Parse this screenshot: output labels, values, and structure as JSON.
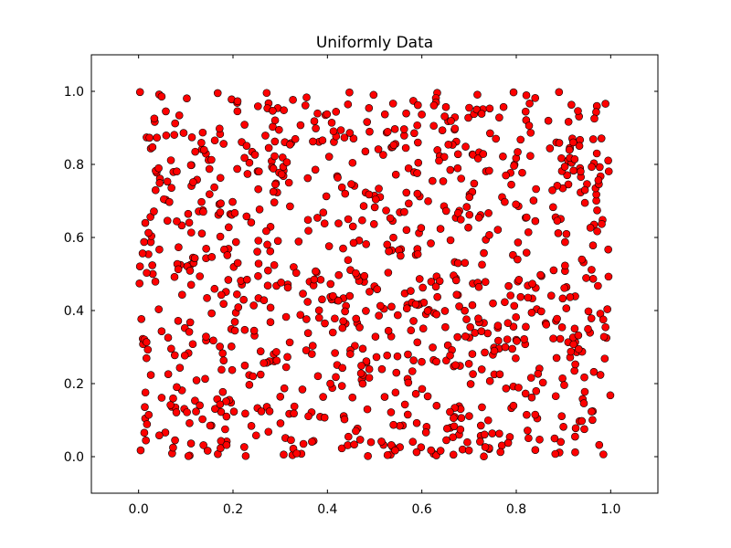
{
  "chart_data": {
    "type": "scatter",
    "title": "Uniformly Data",
    "xlabel": "",
    "ylabel": "",
    "xlim": [
      -0.1,
      1.1
    ],
    "ylim": [
      -0.1,
      1.1
    ],
    "xticks": [
      0.0,
      0.2,
      0.4,
      0.6,
      0.8,
      1.0
    ],
    "xtick_labels": [
      "0.0",
      "0.2",
      "0.4",
      "0.6",
      "0.8",
      "1.0"
    ],
    "yticks": [
      0.0,
      0.2,
      0.4,
      0.6,
      0.8,
      1.0
    ],
    "ytick_labels": [
      "0.0",
      "0.2",
      "0.4",
      "0.6",
      "0.8",
      "1.0"
    ],
    "grid": false,
    "marker": "circle",
    "marker_color": "#ff0000",
    "marker_edge_color": "#000000",
    "point_count": 1000,
    "distribution": "uniform on [0, 1] x [0, 1]",
    "x": [
      0.003,
      0.017,
      0.044,
      0.071,
      0.098,
      0.112,
      0.141,
      0.169,
      0.197,
      0.226,
      0.254,
      0.282,
      0.311,
      0.339,
      0.367,
      0.396,
      0.424,
      0.453,
      0.481,
      0.509,
      0.538,
      0.566,
      0.594,
      0.623,
      0.651,
      0.679,
      0.708,
      0.736,
      0.764,
      0.793,
      0.821,
      0.849,
      0.878,
      0.906,
      0.934,
      0.963,
      0.991,
      0.058,
      0.185,
      0.347
    ],
    "y": [
      0.998,
      0.874,
      0.567,
      0.009,
      0.352,
      0.741,
      0.213,
      0.662,
      0.978,
      0.118,
      0.434,
      0.809,
      0.051,
      0.589,
      0.281,
      0.935,
      0.497,
      0.162,
      0.723,
      0.386,
      0.027,
      0.845,
      0.612,
      0.299,
      0.957,
      0.138,
      0.474,
      0.781,
      0.063,
      0.552,
      0.921,
      0.241,
      0.683,
      0.406,
      0.097,
      0.869,
      0.325,
      0.703,
      0.451,
      0.184
    ]
  }
}
